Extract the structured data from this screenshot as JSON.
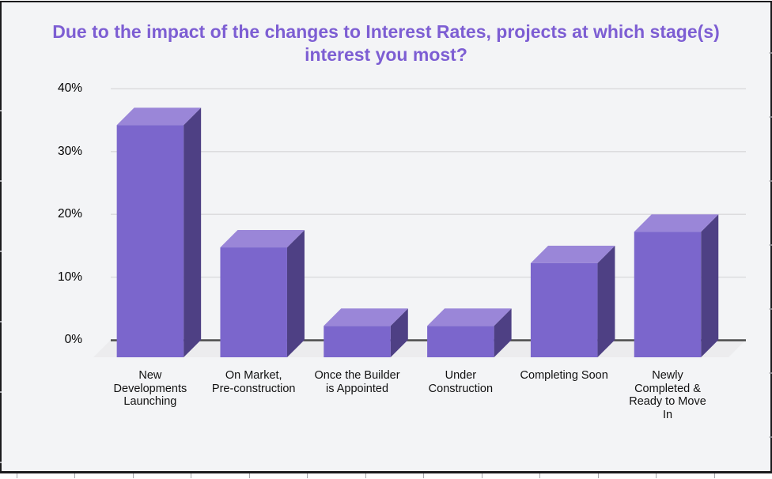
{
  "frame": {
    "border_color": "#1b1b1d"
  },
  "colors": {
    "background": "#f3f4f6",
    "outside_background": "#ffffff",
    "title_text": "#7d5ed3",
    "bar_front": "#7b66cc",
    "bar_top": "#9a86d8",
    "bar_side": "#4e4084",
    "gridline": "#d8d8da",
    "axis_line": "#4b4b4b",
    "floor": "#ececee",
    "label_text": "#111111",
    "edge_tick": "#a6a6ab",
    "frame_border": "#1b1b1d"
  },
  "chart_data": {
    "type": "bar",
    "style_3d": true,
    "title": "Due to the impact of the changes to Interest Rates, projects at which stage(s) interest you most?",
    "categories": [
      "New Developments Launching",
      "On Market, Pre-construction",
      "Once the Builder is Appointed",
      "Under Construction",
      "Completing Soon",
      "Newly Completed & Ready to Move In"
    ],
    "category_label_lines": [
      [
        "New",
        "Developments",
        "Launching"
      ],
      [
        "On Market,",
        "Pre-construction"
      ],
      [
        "Once the Builder",
        "is Appointed"
      ],
      [
        "Under",
        "Construction"
      ],
      [
        "Completing Soon"
      ],
      [
        "Newly",
        "Completed &",
        "Ready to Move",
        "In"
      ]
    ],
    "values": [
      37,
      17.5,
      5,
      5,
      15,
      20
    ],
    "value_unit": "%",
    "series_color": "#7b66cc",
    "xlabel": "",
    "ylabel": "",
    "ylim": [
      0,
      40
    ],
    "yticks": [
      0,
      10,
      20,
      30,
      40
    ],
    "ytick_labels": [
      "0%",
      "10%",
      "20%",
      "30%",
      "40%"
    ],
    "grid": "horizontal",
    "legend": "none"
  }
}
